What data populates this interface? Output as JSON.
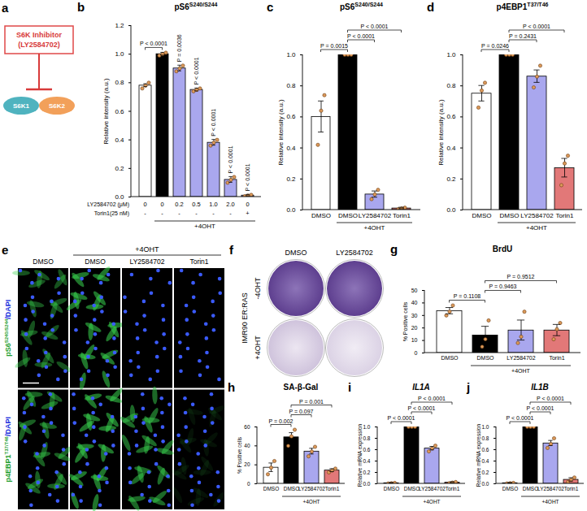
{
  "diagram": {
    "panel": "a",
    "box": [
      "S6K Inhibitor",
      "(LY2584702)"
    ],
    "nodes": [
      "S6K1",
      "S6K2"
    ]
  },
  "chart_data": [
    {
      "panel": "b",
      "type": "bar",
      "title": "pS6",
      "title_superscript": "S240/S244",
      "y_label": "Relative intensity (a.u.)",
      "tick_labels": "y",
      "categories": [
        null,
        null,
        null,
        null,
        null,
        null,
        null
      ],
      "values": [
        0.78,
        1.0,
        0.9,
        0.75,
        0.38,
        0.12,
        0.01
      ],
      "errors": [
        0.01,
        0.01,
        0.02,
        0.01,
        0.02,
        0.02,
        0.005
      ],
      "points": [
        [
          0.76,
          0.78,
          0.8
        ],
        [
          0.99,
          1.0,
          1.01
        ],
        [
          0.88,
          0.9,
          0.92
        ],
        [
          0.74,
          0.75,
          0.76
        ],
        [
          0.36,
          0.38,
          0.4
        ],
        [
          0.1,
          0.12,
          0.14
        ],
        [
          0.005,
          0.01,
          0.015
        ]
      ],
      "colors": [
        "#ffffff",
        "#000000",
        "#a9a7ee",
        "#a9a7ee",
        "#a9a7ee",
        "#a9a7ee",
        "#a9a7ee"
      ],
      "ylim": [
        0,
        1.2
      ],
      "yticks": [
        {
          "value": 0,
          "label": "0.0"
        },
        0.2,
        0.4,
        0.6,
        0.8,
        {
          "value": 1,
          "label": "1.0"
        },
        1.2
      ],
      "comparisons": [
        {
          "pair": [
            0,
            1
          ],
          "label": "P < 0.0001"
        }
      ],
      "annotations": [
        null,
        null,
        "P = 0.0036",
        "P < 0.0001",
        "P < 0.0001",
        "P < 0.0001",
        "P < 0.0001"
      ],
      "x_table": [
        {
          "label": "LY2584702 (μM)",
          "cells": [
            "0",
            "0",
            "0.2",
            "0.5",
            "1.0",
            "2.0",
            "0"
          ]
        },
        {
          "label": "Torin1(25 nM)",
          "cells": [
            "-",
            "-",
            "-",
            "-",
            "-",
            "-",
            "+"
          ]
        }
      ],
      "group": {
        "label": "+4OHT",
        "span": [
          1,
          6
        ]
      }
    },
    {
      "panel": "c",
      "type": "bar",
      "title": "pS6",
      "title_superscript": "S240/S244",
      "y_label": "Relative intensity (a.u.)",
      "categories": [
        "DMSO",
        "DMSO",
        "LY2584702",
        "Torin1"
      ],
      "values": [
        0.6,
        1.0,
        0.1,
        0.01
      ],
      "errors": [
        0.1,
        0,
        0.02,
        0.005
      ],
      "points": [
        [
          0.42,
          0.64,
          0.74
        ],
        [
          1.0,
          1.0,
          1.0
        ],
        [
          0.07,
          0.1,
          0.13
        ],
        [
          0.005,
          0.01,
          0.015
        ]
      ],
      "colors": [
        "#ffffff",
        "#000000",
        "#a9a7ee",
        "#e27878"
      ],
      "ylim": [
        0,
        1
      ],
      "yticks": [
        {
          "value": 0,
          "label": "0.0"
        },
        0.2,
        0.4,
        0.6,
        0.8,
        {
          "value": 1,
          "label": "1.0"
        }
      ],
      "comparisons": [
        {
          "pair": [
            0,
            1
          ],
          "label": "P = 0.0015"
        },
        {
          "pair": [
            1,
            2
          ],
          "label": "P < 0.0001"
        },
        {
          "pair": [
            1,
            3
          ],
          "label": "P < 0.0001"
        }
      ],
      "group": {
        "label": "+4OHT",
        "span": [
          1,
          3
        ]
      }
    },
    {
      "panel": "d",
      "type": "bar",
      "title": "p4EBP1",
      "title_superscript": "T37/T46",
      "y_label": "Relative intensity (a.u.)",
      "categories": [
        "DMSO",
        "DMSO",
        "LY2584702",
        "Torin1"
      ],
      "values": [
        0.75,
        1.0,
        0.86,
        0.27
      ],
      "errors": [
        0.05,
        0,
        0.04,
        0.06
      ],
      "points": [
        [
          0.66,
          0.77,
          0.82
        ],
        [
          1.0,
          1.0,
          1.0
        ],
        [
          0.79,
          0.86,
          0.93
        ],
        [
          0.16,
          0.3,
          0.35
        ]
      ],
      "colors": [
        "#ffffff",
        "#000000",
        "#a9a7ee",
        "#e27878"
      ],
      "ylim": [
        0,
        1
      ],
      "yticks": [
        {
          "value": 0,
          "label": "0.0"
        },
        0.2,
        0.4,
        0.6,
        0.8,
        {
          "value": 1,
          "label": "1.0"
        }
      ],
      "comparisons": [
        {
          "pair": [
            0,
            1
          ],
          "label": "P = 0.0246"
        },
        {
          "pair": [
            1,
            2
          ],
          "label": "P = 0.2431"
        },
        {
          "pair": [
            1,
            3
          ],
          "label": "P < 0.0001"
        }
      ],
      "group": {
        "label": "+4OHT",
        "span": [
          1,
          3
        ]
      }
    },
    {
      "panel": "g",
      "type": "bar",
      "title": "BrdU",
      "y_label": "% Positive cells",
      "categories": [
        "DMSO",
        "DMSO",
        "LY2584702",
        "Torin1"
      ],
      "values": [
        33.5,
        14,
        18,
        18
      ],
      "errors": [
        2.5,
        7,
        8,
        4.5
      ],
      "points": [
        [
          30,
          33,
          38
        ],
        [
          5,
          11,
          26
        ],
        [
          8,
          13,
          33
        ],
        [
          11,
          19,
          24
        ]
      ],
      "colors": [
        "#ffffff",
        "#000000",
        "#a9a7ee",
        "#e27878"
      ],
      "ylim": [
        0,
        50
      ],
      "yticks": [
        0,
        10,
        20,
        30,
        40,
        50
      ],
      "comparisons": [
        {
          "pair": [
            0,
            1
          ],
          "label": "P = 0.1108"
        },
        {
          "pair": [
            1,
            2
          ],
          "label": "P = 0.9463"
        },
        {
          "pair": [
            1,
            3
          ],
          "label": "P = 0.9512"
        }
      ],
      "group": {
        "label": "+4OHT",
        "span": [
          1,
          3
        ]
      }
    },
    {
      "panel": "h",
      "type": "bar",
      "title": "SA-β-Gal",
      "y_label": "% Positive cells",
      "categories": [
        "DMSO",
        "DMSO",
        "LY2584702",
        "Torin1"
      ],
      "values": [
        17,
        49,
        34,
        14
      ],
      "errors": [
        4.5,
        4.5,
        3,
        1.5
      ],
      "points": [
        [
          10,
          17,
          24
        ],
        [
          40,
          50,
          57
        ],
        [
          29,
          34,
          39
        ],
        [
          12,
          14,
          16
        ]
      ],
      "colors": [
        "#ffffff",
        "#000000",
        "#a9a7ee",
        "#e27878"
      ],
      "ylim": [
        0,
        60
      ],
      "yticks": [
        0,
        20,
        40,
        60
      ],
      "comparisons": [
        {
          "pair": [
            0,
            1
          ],
          "label": "P = 0.002"
        },
        {
          "pair": [
            1,
            2
          ],
          "label": "P = 0.097"
        },
        {
          "pair": [
            1,
            3
          ],
          "label": "P = 0.001"
        }
      ],
      "group": {
        "label": "+4OHT",
        "span": [
          1,
          3
        ]
      }
    },
    {
      "panel": "i",
      "type": "bar",
      "title": "IL1A",
      "y_label": "Relative mRNA expression",
      "categories": [
        "DMSO",
        "DMSO",
        "LY2584702",
        "Torin1"
      ],
      "values": [
        0.01,
        1.0,
        0.62,
        0.02
      ],
      "errors": [
        0.005,
        0,
        0.03,
        0.01
      ],
      "points": [
        [
          0.005,
          0.01,
          0.015
        ],
        [
          1.0,
          1.0,
          1.0
        ],
        [
          0.57,
          0.62,
          0.67
        ],
        [
          0.01,
          0.02,
          0.03
        ]
      ],
      "colors": [
        "#ffffff",
        "#000000",
        "#a9a7ee",
        "#e27878"
      ],
      "ylim": [
        0,
        1
      ],
      "yticks": [
        {
          "value": 0,
          "label": "0.0"
        },
        0.2,
        0.4,
        0.6,
        0.8,
        {
          "value": 1,
          "label": "1.0"
        }
      ],
      "comparisons": [
        {
          "pair": [
            0,
            1
          ],
          "label": "P < 0.0001"
        },
        {
          "pair": [
            1,
            2
          ],
          "label": "P < 0.0001"
        },
        {
          "pair": [
            1,
            3
          ],
          "label": "P < 0.0001"
        }
      ],
      "group": {
        "label": "+4OHT",
        "span": [
          1,
          3
        ]
      }
    },
    {
      "panel": "j",
      "type": "bar",
      "title": "IL1B",
      "y_label": "Relative mRNA expression",
      "categories": [
        "DMSO",
        "DMSO",
        "LY2584702",
        "Torin1"
      ],
      "values": [
        0.01,
        1.0,
        0.71,
        0.07
      ],
      "errors": [
        0.005,
        0,
        0.045,
        0.03
      ],
      "points": [
        [
          0.005,
          0.01,
          0.015
        ],
        [
          1.0,
          1.0,
          1.0
        ],
        [
          0.63,
          0.7,
          0.8
        ],
        [
          0.03,
          0.07,
          0.11
        ]
      ],
      "colors": [
        "#ffffff",
        "#000000",
        "#a9a7ee",
        "#e27878"
      ],
      "ylim": [
        0,
        1
      ],
      "yticks": [
        {
          "value": 0,
          "label": "0.0"
        },
        0.2,
        0.4,
        0.6,
        0.8,
        {
          "value": 1,
          "label": "1.0"
        }
      ],
      "comparisons": [
        {
          "pair": [
            0,
            1
          ],
          "label": "P < 0.0001"
        },
        {
          "pair": [
            1,
            2
          ],
          "label": "P < 0.0001"
        },
        {
          "pair": [
            1,
            3
          ],
          "label": "P < 0.0001"
        }
      ],
      "group": {
        "label": "+4OHT",
        "span": [
          1,
          3
        ]
      }
    }
  ],
  "micrographs": {
    "panel": "e",
    "group_label": "+4OHT",
    "columns": [
      "DMSO",
      "DMSO",
      "LY2584702",
      "Torin1"
    ],
    "rows": [
      {
        "label": "pS6",
        "superscript": "S240/S244",
        "suffix": "/DAPI"
      },
      {
        "label": "p4EBP1",
        "superscript": "T37/T46",
        "suffix": "/DAPI"
      }
    ]
  },
  "plates": {
    "panel": "f",
    "cell_line": "IMR90 ER:RAS",
    "columns": [
      "DMSO",
      "LY2584702"
    ],
    "rows": [
      "-4OHT",
      "+4OHT"
    ]
  }
}
